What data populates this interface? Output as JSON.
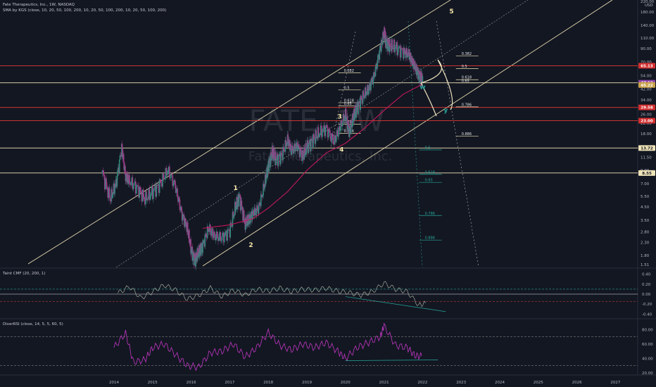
{
  "header": {
    "title": "Fate Therapeutics, Inc., 1W, NASDAQ",
    "sma_line": "SMA by KGS (close, 10, 20, 50, 100, 200, 10, 20, 50, 100, 200, 10, 20, 50, 100, 200)",
    "cmf_label": "Taint CMF (20, 200, 1)",
    "rsi_label": "DiverRSI (close, 14, 5, 5, 60, 5)",
    "currency": "USD"
  },
  "watermark": {
    "symbol": "FATE",
    "symbol_suffix": "1W",
    "name": "Fate Therapeutics, Inc."
  },
  "colors": {
    "background": "#131722",
    "candle_up": "#2e8b7a",
    "candle_down": "#a23c8c",
    "sma": "#c2185b",
    "channel": "#e8dcb0",
    "hline_red": "#e53935",
    "hline_cream": "#efe3b8",
    "fib_green": "#26a69a",
    "cmf_line": "#a0a898",
    "rsi_line": "#c336c4",
    "badge_red": "#d32f2f",
    "badge_gold": "#c9a24a"
  },
  "chart_data": {
    "type": "candlestick",
    "x_axis": {
      "tick_labels": [
        "2014",
        "2015",
        "2016",
        "2017",
        "2018",
        "2019",
        "2020",
        "2021",
        "2022",
        "2023",
        "2024",
        "2025",
        "2026",
        "2027"
      ]
    },
    "y_axis": {
      "scale": "log",
      "tick_labels": [
        "220.00",
        "180.00",
        "140.00",
        "110.00",
        "90.00",
        "70.00",
        "54.00",
        "42.00",
        "34.00",
        "26.00",
        "22.00",
        "18.00",
        "14.00",
        "11.50",
        "9.00",
        "7.00",
        "5.50",
        "4.50",
        "3.50",
        "2.80",
        "2.30",
        "1.80",
        "1.51"
      ]
    },
    "price_badges": [
      {
        "label": "65.13",
        "color": "badge_red"
      },
      {
        "label": "47.13",
        "color": "badge_purple"
      },
      {
        "label": "45.22",
        "color": "badge_gold"
      },
      {
        "label": "29.58",
        "color": "badge_red"
      },
      {
        "label": "23.00",
        "color": "badge_red"
      },
      {
        "label": "13.72",
        "color": "badge_cream"
      },
      {
        "label": "8.55",
        "color": "badge_cream"
      }
    ],
    "horizontal_levels": [
      {
        "value": 65.13,
        "color": "hline_red"
      },
      {
        "value": 47.13,
        "color": "hline_cream"
      },
      {
        "value": 29.58,
        "color": "hline_red"
      },
      {
        "value": 23.0,
        "color": "hline_red"
      },
      {
        "value": 13.72,
        "color": "hline_cream"
      },
      {
        "value": 8.55,
        "color": "hline_cream"
      }
    ],
    "price_series": {
      "x": [
        2013.7,
        2013.9,
        2014.05,
        2014.2,
        2014.3,
        2014.4,
        2014.6,
        2014.8,
        2015.0,
        2015.2,
        2015.4,
        2015.6,
        2015.75,
        2015.9,
        2016.0,
        2016.1,
        2016.2,
        2016.3,
        2016.45,
        2016.6,
        2016.8,
        2017.0,
        2017.15,
        2017.25,
        2017.4,
        2017.5,
        2017.6,
        2017.75,
        2017.9,
        2018.0,
        2018.1,
        2018.2,
        2018.35,
        2018.5,
        2018.6,
        2018.75,
        2018.9,
        2019.0,
        2019.15,
        2019.3,
        2019.5,
        2019.7,
        2019.85,
        2020.0,
        2020.1,
        2020.2,
        2020.3,
        2020.45,
        2020.6,
        2020.75,
        2020.9,
        2021.0,
        2021.05,
        2021.15,
        2021.3,
        2021.5,
        2021.65,
        2021.75,
        2021.85,
        2021.95,
        2022.0
      ],
      "close": [
        8.5,
        5.2,
        7.0,
        13.8,
        8.0,
        7.3,
        6.5,
        5.2,
        6.0,
        7.0,
        9.0,
        6.5,
        4.0,
        3.0,
        2.0,
        1.65,
        1.9,
        2.2,
        3.0,
        2.6,
        2.5,
        2.9,
        4.5,
        5.5,
        3.2,
        3.6,
        4.0,
        4.4,
        6.8,
        10.0,
        12.5,
        11.0,
        12.0,
        16.0,
        13.0,
        14.5,
        11.5,
        14.0,
        16.0,
        18.0,
        20.0,
        15.5,
        20.0,
        26.0,
        19.0,
        24.0,
        30.0,
        36.0,
        42.0,
        55.0,
        90.0,
        120.0,
        105.0,
        95.0,
        92.0,
        85.0,
        80.0,
        68.0,
        60.0,
        52.0,
        47.13
      ]
    },
    "series": [
      {
        "name": "SMA",
        "x": [
          2016.3,
          2017.0,
          2017.6,
          2018.0,
          2018.5,
          2019.0,
          2019.5,
          2020.0,
          2020.5,
          2021.0,
          2021.5,
          2022.0
        ],
        "values": [
          3.0,
          3.2,
          3.6,
          4.4,
          6.0,
          9.0,
          12.5,
          15.0,
          20.0,
          28.0,
          38.0,
          46.0
        ]
      }
    ],
    "wave_labels": [
      {
        "text": "1",
        "x": 2017.15,
        "y": 6.2
      },
      {
        "text": "2",
        "x": 2017.55,
        "y": 2.1
      },
      {
        "text": "3",
        "x": 2019.85,
        "y": 24.0
      },
      {
        "text": "4",
        "x": 2019.9,
        "y": 12.8
      },
      {
        "text": "5",
        "x": 2022.75,
        "y": 175.0
      },
      {
        "text": "w",
        "x": 2022.0,
        "y": 42.0
      },
      {
        "text": "y",
        "x": 2022.6,
        "y": 27.0
      }
    ],
    "fib_labels": [
      {
        "text": "0.382",
        "x": 2022.9,
        "y": 80.0
      },
      {
        "text": "0.5",
        "x": 2022.9,
        "y": 63.0
      },
      {
        "text": "0.618",
        "x": 2022.9,
        "y": 51.0
      },
      {
        "text": "0.65",
        "x": 2022.9,
        "y": 48.0
      },
      {
        "text": "0.786",
        "x": 2022.9,
        "y": 30.5
      },
      {
        "text": "0.886",
        "x": 2022.9,
        "y": 17.5
      },
      {
        "text": "0.382",
        "x": 2019.85,
        "y": 58.0
      },
      {
        "text": "0.5",
        "x": 2019.85,
        "y": 42.0
      },
      {
        "text": "0.618",
        "x": 2019.85,
        "y": 33.0
      },
      {
        "text": "0.65",
        "x": 2019.85,
        "y": 31.0
      },
      {
        "text": "0.786",
        "x": 2019.85,
        "y": 22.0
      },
      {
        "text": "0.886",
        "x": 2019.85,
        "y": 18.5
      },
      {
        "text": "0.5",
        "x": 2021.95,
        "y": 13.5
      },
      {
        "text": "0.618",
        "x": 2021.95,
        "y": 8.5
      },
      {
        "text": "0.65",
        "x": 2021.95,
        "y": 7.3
      },
      {
        "text": "0.786",
        "x": 2021.95,
        "y": 3.9
      },
      {
        "text": "0.886",
        "x": 2021.95,
        "y": 2.45
      }
    ],
    "cmf": {
      "y_ticks": [
        "0.40",
        "0.20",
        "0.00",
        "-0.20",
        "-0.40"
      ],
      "x": [
        2014.1,
        2014.4,
        2014.7,
        2015.0,
        2015.3,
        2015.6,
        2015.9,
        2016.2,
        2016.5,
        2016.8,
        2017.1,
        2017.4,
        2017.7,
        2018.0,
        2018.3,
        2018.6,
        2018.9,
        2019.2,
        2019.5,
        2019.8,
        2020.1,
        2020.4,
        2020.7,
        2021.0,
        2021.3,
        2021.6,
        2021.9,
        2022.1
      ],
      "values": [
        0.02,
        0.15,
        -0.08,
        0.05,
        0.18,
        0.08,
        -0.1,
        -0.02,
        0.12,
        -0.05,
        0.08,
        -0.02,
        0.1,
        0.06,
        0.12,
        0.05,
        0.1,
        0.08,
        0.12,
        0.06,
        0.03,
        -0.02,
        0.05,
        0.22,
        0.1,
        0.05,
        -0.22,
        -0.18
      ]
    },
    "rsi": {
      "y_ticks": [
        "80.00",
        "60.00",
        "40.00",
        "20.00"
      ],
      "x": [
        2014.0,
        2014.3,
        2014.5,
        2014.8,
        2015.0,
        2015.3,
        2015.6,
        2015.9,
        2016.2,
        2016.5,
        2016.8,
        2017.1,
        2017.4,
        2017.7,
        2018.0,
        2018.3,
        2018.6,
        2018.9,
        2019.2,
        2019.5,
        2019.8,
        2020.0,
        2020.3,
        2020.6,
        2020.9,
        2021.0,
        2021.3,
        2021.6,
        2021.8,
        2022.0
      ],
      "values": [
        55,
        75,
        35,
        38,
        55,
        60,
        45,
        30,
        28,
        48,
        50,
        60,
        42,
        55,
        76,
        58,
        52,
        60,
        55,
        62,
        50,
        40,
        55,
        62,
        70,
        85,
        58,
        55,
        44,
        43
      ]
    }
  }
}
